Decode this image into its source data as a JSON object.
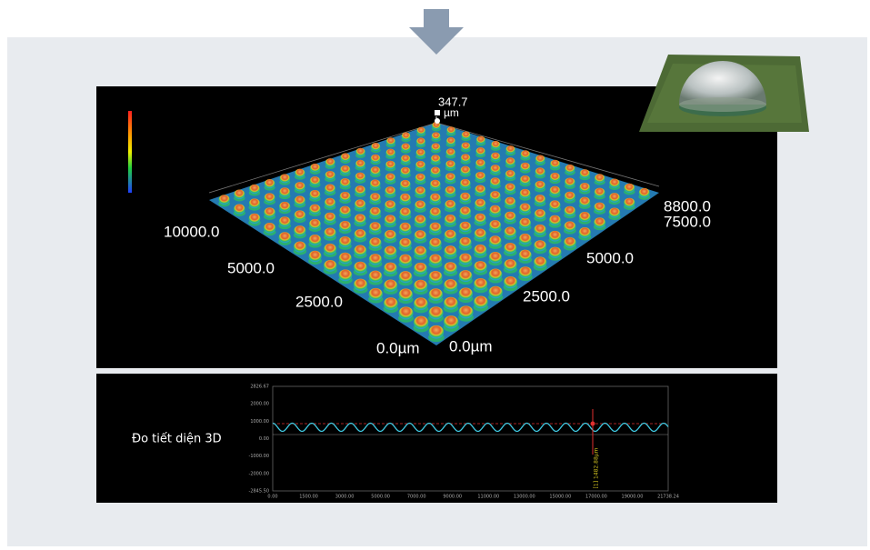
{
  "figure": {
    "view3d": {
      "z_max": "347.7",
      "z_unit": "µm",
      "right_axis": [
        "8800.0",
        "7500.0",
        "5000.0",
        "2500.0",
        "0.0µm"
      ],
      "left_axis": [
        "10000.0",
        "5000.0",
        "2500.0",
        "0.0µm"
      ]
    },
    "profile": {
      "label": "Đo tiết diện 3D",
      "y_labels": [
        "2826.67",
        "2000.00",
        "1000.00",
        "0.00",
        "-1000.00",
        "-2000.00",
        "-2845.50"
      ],
      "x_labels": [
        "0.00",
        "1500.00",
        "3000.00",
        "5000.00",
        "7000.00",
        "9000.00",
        "11000.00",
        "13000.00",
        "15000.00",
        "17000.00",
        "19000.00",
        "21738.24"
      ],
      "marker": "[1] 1482.88µm"
    }
  }
}
